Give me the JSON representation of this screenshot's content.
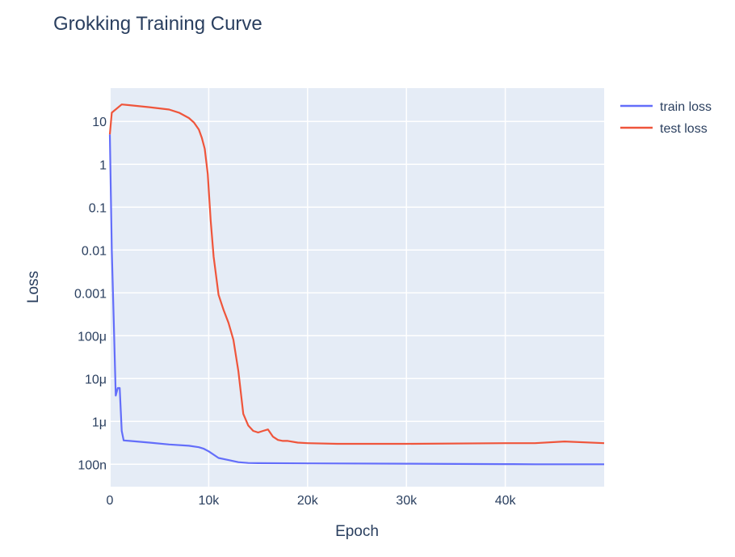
{
  "chart_data": {
    "type": "line",
    "title": "Grokking Training Curve",
    "xlabel": "Epoch",
    "ylabel": "Loss",
    "xlim": [
      0,
      50000
    ],
    "ylim": [
      3e-08,
      60
    ],
    "y_scale": "log",
    "grid": true,
    "legend_position": "top-right",
    "plot_background": "#e5ecf6",
    "x_ticks": [
      {
        "value": 0,
        "label": "0"
      },
      {
        "value": 10000,
        "label": "10k"
      },
      {
        "value": 20000,
        "label": "20k"
      },
      {
        "value": 30000,
        "label": "30k"
      },
      {
        "value": 40000,
        "label": "40k"
      }
    ],
    "y_ticks": [
      {
        "value": 1e-07,
        "label": "100n"
      },
      {
        "value": 1e-06,
        "label": "1μ"
      },
      {
        "value": 1e-05,
        "label": "10μ"
      },
      {
        "value": 0.0001,
        "label": "100μ"
      },
      {
        "value": 0.001,
        "label": "0.001"
      },
      {
        "value": 0.01,
        "label": "0.01"
      },
      {
        "value": 0.1,
        "label": "0.1"
      },
      {
        "value": 1,
        "label": "1"
      },
      {
        "value": 10,
        "label": "10"
      }
    ],
    "series": [
      {
        "name": "train loss",
        "color": "#636efa",
        "x": [
          0,
          200,
          400,
          600,
          800,
          1000,
          1200,
          1400,
          2000,
          4000,
          6000,
          8000,
          9000,
          9500,
          10000,
          11000,
          12000,
          13000,
          14000,
          15000,
          20000,
          30000,
          40000,
          43000,
          50000
        ],
        "y": [
          5,
          0.01,
          0.0002,
          4e-06,
          6e-06,
          6e-06,
          6e-07,
          3.6e-07,
          3.5e-07,
          3.2e-07,
          2.9e-07,
          2.7e-07,
          2.5e-07,
          2.3e-07,
          2e-07,
          1.4e-07,
          1.25e-07,
          1.12e-07,
          1.07e-07,
          1.06e-07,
          1.05e-07,
          1.03e-07,
          1.01e-07,
          1e-07,
          1e-07
        ]
      },
      {
        "name": "test loss",
        "color": "#ef553b",
        "x": [
          0,
          200,
          1200,
          2000,
          4000,
          6000,
          7000,
          8000,
          8500,
          9000,
          9300,
          9600,
          9900,
          10200,
          10500,
          11000,
          11500,
          12000,
          12500,
          13000,
          13500,
          14000,
          14500,
          15000,
          15500,
          16000,
          16500,
          17000,
          17500,
          18000,
          19000,
          20000,
          23000,
          30000,
          40000,
          43000,
          46000,
          50000
        ],
        "y": [
          5,
          16,
          25,
          24,
          21.5,
          19,
          16,
          12,
          9.5,
          6.5,
          4.2,
          2.3,
          0.6,
          0.05,
          0.007,
          0.0009,
          0.0004,
          0.0002,
          8e-05,
          1.5e-05,
          1.5e-06,
          8e-07,
          6e-07,
          5.5e-07,
          6e-07,
          6.5e-07,
          4.4e-07,
          3.7e-07,
          3.5e-07,
          3.5e-07,
          3.2e-07,
          3.1e-07,
          3e-07,
          3e-07,
          3.1e-07,
          3.1e-07,
          3.4e-07,
          3.1e-07
        ]
      }
    ]
  }
}
